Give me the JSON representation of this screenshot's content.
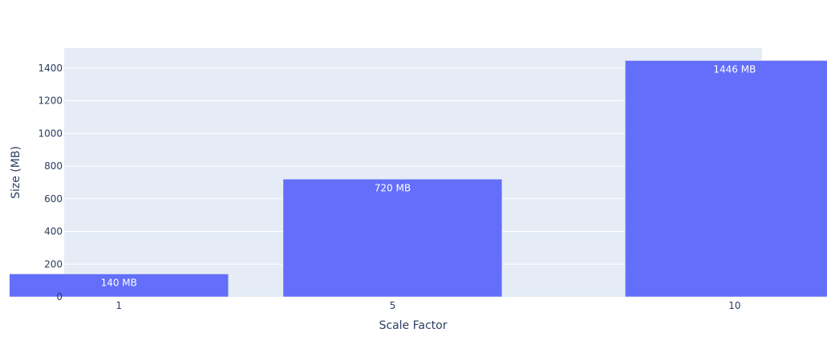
{
  "chart_data": {
    "type": "bar",
    "title": "",
    "xlabel": "Scale Factor",
    "ylabel": "Size (MB)",
    "x": [
      1,
      5,
      10
    ],
    "values": [
      140,
      720,
      1446
    ],
    "data_labels": [
      "140 MB",
      "720 MB",
      "1446 MB"
    ],
    "x_ticks": [
      {
        "value": 1,
        "label": "1"
      },
      {
        "value": 5,
        "label": "5"
      },
      {
        "value": 10,
        "label": "10"
      }
    ],
    "y_ticks": [
      {
        "value": 0,
        "label": "0"
      },
      {
        "value": 200,
        "label": "200"
      },
      {
        "value": 400,
        "label": "400"
      },
      {
        "value": 600,
        "label": "600"
      },
      {
        "value": 800,
        "label": "800"
      },
      {
        "value": 1000,
        "label": "1000"
      },
      {
        "value": 1200,
        "label": "1200"
      },
      {
        "value": 1400,
        "label": "1400"
      }
    ],
    "ylim": [
      0,
      1522
    ],
    "xlim": [
      0.2,
      10.4
    ],
    "bar_width_units": 3.2,
    "grid": true,
    "colors": {
      "bar": "#636efa",
      "plot_background": "#e5ecf6",
      "grid": "#ffffff",
      "text": "#2a3f5f"
    }
  }
}
